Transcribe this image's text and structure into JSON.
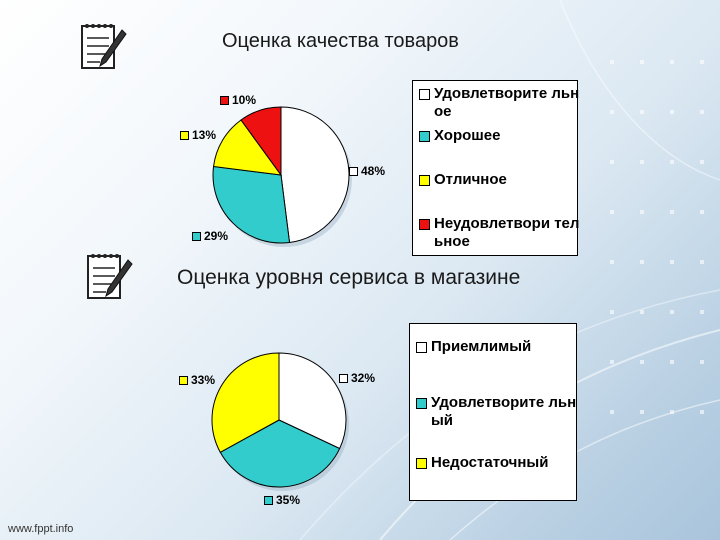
{
  "chart_data": [
    {
      "type": "pie",
      "title": "Оценка качества товаров",
      "categories": [
        "Удовлетворительное",
        "Хорошее",
        "Отличное",
        "Неудовлетворительное"
      ],
      "legend_labels": [
        "Удовлетворите льное",
        "Хорошее",
        "Отличное",
        "Неудовлетвори тельное"
      ],
      "values": [
        48,
        29,
        13,
        10
      ],
      "value_labels": [
        "48%",
        "29%",
        "13%",
        "10%"
      ],
      "colors": [
        "#ffffff",
        "#33cccc",
        "#ffff00",
        "#ee1111"
      ],
      "legend_placement": "right"
    },
    {
      "type": "pie",
      "title": "Оценка уровня сервиса в магазине",
      "categories": [
        "Приемлимый",
        "Удовлетворительный",
        "Недостаточный"
      ],
      "legend_labels": [
        "Приемлимый",
        "Удовлетворите льный",
        "Недостаточный"
      ],
      "values": [
        32,
        35,
        33
      ],
      "value_labels": [
        "32%",
        "35%",
        "33%"
      ],
      "colors": [
        "#ffffff",
        "#33cccc",
        "#ffff00"
      ],
      "legend_placement": "right"
    }
  ],
  "footer": {
    "watermark": "www.fppt.info"
  },
  "icons": {
    "notepad": "notepad-pencil-icon"
  }
}
